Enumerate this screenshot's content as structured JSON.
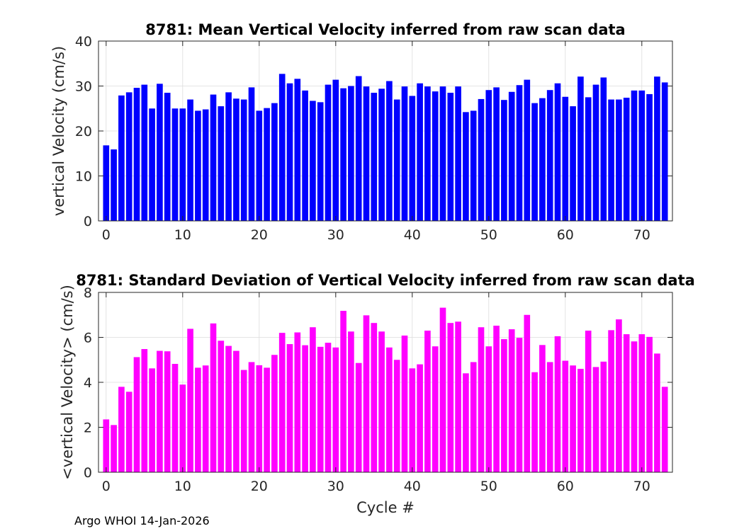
{
  "footer": "Argo WHOI 14-Jan-2026",
  "chart_data": [
    {
      "type": "bar",
      "title": "8781: Mean Vertical Velocity inferred from raw scan data",
      "xlabel": "",
      "ylabel": "vertical Velocity (cm/s)",
      "xlim": [
        -1,
        74
      ],
      "ylim": [
        0,
        40
      ],
      "xticks": [
        0,
        10,
        20,
        30,
        40,
        50,
        60,
        70
      ],
      "yticks": [
        0,
        10,
        20,
        30,
        40
      ],
      "grid": true,
      "color": "#0000ff",
      "x": [
        0,
        1,
        2,
        3,
        4,
        5,
        6,
        7,
        8,
        9,
        10,
        11,
        12,
        13,
        14,
        15,
        16,
        17,
        18,
        19,
        20,
        21,
        22,
        23,
        24,
        25,
        26,
        27,
        28,
        29,
        30,
        31,
        32,
        33,
        34,
        35,
        36,
        37,
        38,
        39,
        40,
        41,
        42,
        43,
        44,
        45,
        46,
        47,
        48,
        49,
        50,
        51,
        52,
        53,
        54,
        55,
        56,
        57,
        58,
        59,
        60,
        61,
        62,
        63,
        64,
        65,
        66,
        67,
        68,
        69,
        70,
        71,
        72,
        73
      ],
      "values": [
        16.8,
        15.9,
        27.9,
        28.6,
        29.6,
        30.3,
        25.0,
        30.5,
        28.5,
        25.0,
        25.0,
        27.0,
        24.5,
        24.8,
        28.1,
        25.5,
        28.6,
        27.2,
        27.0,
        29.7,
        24.5,
        25.1,
        26.2,
        32.7,
        30.6,
        31.6,
        29.0,
        26.7,
        26.4,
        30.3,
        31.4,
        29.5,
        30.0,
        32.2,
        29.9,
        28.5,
        29.4,
        31.1,
        27.0,
        29.9,
        27.8,
        30.6,
        29.9,
        28.8,
        29.9,
        28.5,
        29.9,
        24.2,
        24.5,
        27.1,
        29.1,
        29.7,
        26.9,
        28.7,
        30.2,
        31.4,
        26.2,
        27.3,
        29.1,
        30.6,
        27.6,
        25.5,
        32.1,
        27.5,
        30.3,
        31.9,
        27.0,
        27.0,
        27.4,
        29.0,
        29.0,
        28.2,
        32.1,
        30.8
      ]
    },
    {
      "type": "bar",
      "title": "8781: Standard Deviation of Vertical Velocity inferred from raw scan data",
      "xlabel": "Cycle #",
      "ylabel": "<vertical Velocity> (cm/s)",
      "xlim": [
        -1,
        74
      ],
      "ylim": [
        0,
        8
      ],
      "xticks": [
        0,
        10,
        20,
        30,
        40,
        50,
        60,
        70
      ],
      "yticks": [
        0,
        2,
        4,
        6,
        8
      ],
      "grid": true,
      "color": "#ff00ff",
      "x": [
        0,
        1,
        2,
        3,
        4,
        5,
        6,
        7,
        8,
        9,
        10,
        11,
        12,
        13,
        14,
        15,
        16,
        17,
        18,
        19,
        20,
        21,
        22,
        23,
        24,
        25,
        26,
        27,
        28,
        29,
        30,
        31,
        32,
        33,
        34,
        35,
        36,
        37,
        38,
        39,
        40,
        41,
        42,
        43,
        44,
        45,
        46,
        47,
        48,
        49,
        50,
        51,
        52,
        53,
        54,
        55,
        56,
        57,
        58,
        59,
        60,
        61,
        62,
        63,
        64,
        65,
        66,
        67,
        68,
        69,
        70,
        71,
        72,
        73
      ],
      "values": [
        2.35,
        2.1,
        3.8,
        3.58,
        5.12,
        5.48,
        4.62,
        5.4,
        5.38,
        4.82,
        3.9,
        6.38,
        4.65,
        4.75,
        6.62,
        5.85,
        5.62,
        5.4,
        4.55,
        4.9,
        4.76,
        4.65,
        5.22,
        6.2,
        5.7,
        6.22,
        5.65,
        6.45,
        5.58,
        5.76,
        5.55,
        7.18,
        6.26,
        4.86,
        6.98,
        6.64,
        6.26,
        5.55,
        5.0,
        6.08,
        4.62,
        4.8,
        6.3,
        5.6,
        7.32,
        6.64,
        6.7,
        4.4,
        4.9,
        6.45,
        5.6,
        6.52,
        5.92,
        6.36,
        5.98,
        7.0,
        4.45,
        5.66,
        4.9,
        6.05,
        4.96,
        4.75,
        4.6,
        6.3,
        4.68,
        4.92,
        6.32,
        6.8,
        6.14,
        5.82,
        6.14,
        6.02,
        5.28,
        3.8
      ]
    }
  ]
}
